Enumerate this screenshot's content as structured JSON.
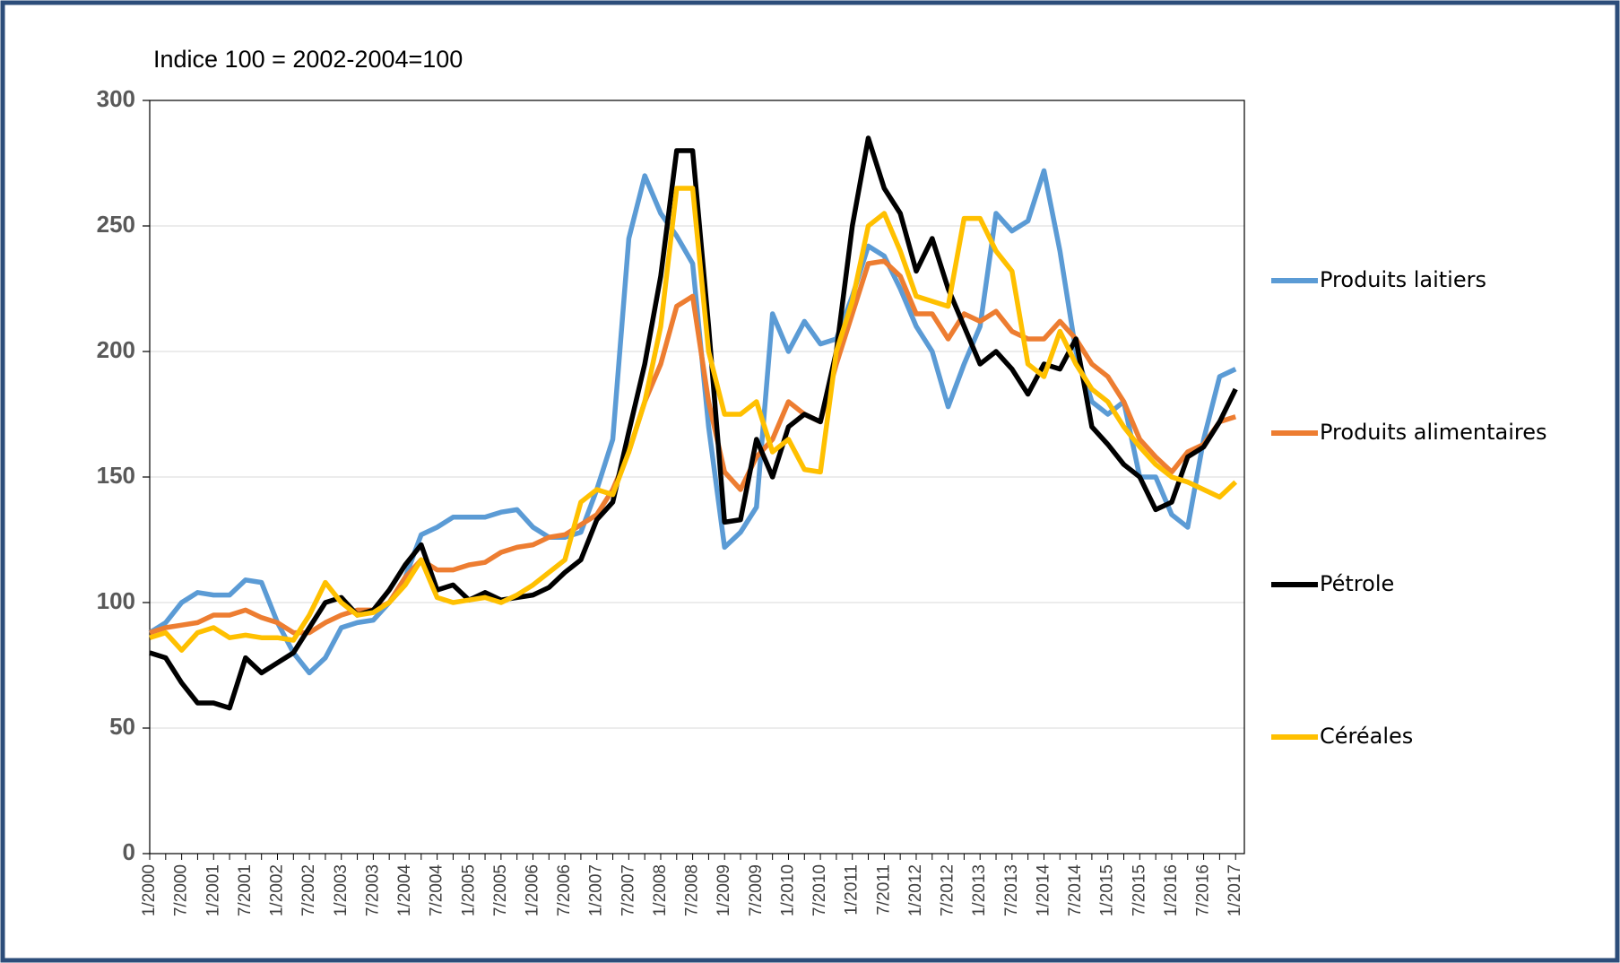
{
  "chart_data": {
    "type": "line",
    "title": "Indice 100 = 2002-2004=100",
    "categories": [
      "1/2000",
      null,
      "7/2000",
      null,
      "1/2001",
      null,
      "7/2001",
      null,
      "1/2002",
      null,
      "7/2002",
      null,
      "1/2003",
      null,
      "7/2003",
      null,
      "1/2004",
      null,
      "7/2004",
      null,
      "1/2005",
      null,
      "7/2005",
      null,
      "1/2006",
      null,
      "7/2006",
      null,
      "1/2007",
      null,
      "7/2007",
      null,
      "1/2008",
      null,
      "7/2008",
      null,
      "1/2009",
      null,
      "7/2009",
      null,
      "1/2010",
      null,
      "7/2010",
      null,
      "1/2011",
      null,
      "7/2011",
      null,
      "1/2012",
      null,
      "7/2012",
      null,
      "1/2013",
      null,
      "7/2013",
      null,
      "1/2014",
      null,
      "7/2014",
      null,
      "1/2015",
      null,
      "7/2015",
      null,
      "1/2016",
      null,
      "7/2016",
      null,
      "1/2017"
    ],
    "series": [
      {
        "name": "Produits laitiers",
        "color": "#5b9bd5",
        "values": [
          88,
          92,
          100,
          104,
          103,
          103,
          109,
          108,
          92,
          80,
          72,
          78,
          90,
          92,
          93,
          100,
          110,
          127,
          130,
          134,
          134,
          134,
          136,
          137,
          130,
          126,
          126,
          128,
          145,
          165,
          245,
          270,
          255,
          246,
          235,
          170,
          122,
          128,
          138,
          215,
          200,
          212,
          203,
          205,
          222,
          242,
          238,
          225,
          210,
          200,
          178,
          195,
          210,
          255,
          248,
          252,
          272,
          240,
          200,
          180,
          175,
          180,
          150,
          150,
          135,
          130,
          165,
          190,
          193
        ]
      },
      {
        "name": "Produits alimentaires",
        "color": "#ed7d31",
        "values": [
          88,
          90,
          91,
          92,
          95,
          95,
          97,
          94,
          92,
          88,
          88,
          92,
          95,
          97,
          97,
          100,
          110,
          117,
          113,
          113,
          115,
          116,
          120,
          122,
          123,
          126,
          127,
          131,
          135,
          145,
          160,
          180,
          195,
          218,
          222,
          180,
          152,
          145,
          158,
          165,
          180,
          175,
          172,
          195,
          215,
          235,
          236,
          230,
          215,
          215,
          205,
          215,
          212,
          216,
          208,
          205,
          205,
          212,
          205,
          195,
          190,
          180,
          165,
          158,
          152,
          160,
          163,
          172,
          174
        ]
      },
      {
        "name": "Pétrole",
        "color": "#000000",
        "values": [
          80,
          78,
          68,
          60,
          60,
          58,
          78,
          72,
          76,
          80,
          90,
          100,
          102,
          95,
          97,
          105,
          115,
          123,
          105,
          107,
          101,
          104,
          101,
          102,
          103,
          106,
          112,
          117,
          133,
          140,
          168,
          195,
          230,
          280,
          280,
          210,
          132,
          133,
          165,
          150,
          170,
          175,
          172,
          200,
          250,
          285,
          265,
          255,
          232,
          245,
          225,
          210,
          195,
          200,
          193,
          183,
          195,
          193,
          205,
          170,
          163,
          155,
          150,
          137,
          140,
          158,
          162,
          172,
          185
        ]
      },
      {
        "name": "Céréales",
        "color": "#ffc000",
        "values": [
          86,
          88,
          81,
          88,
          90,
          86,
          87,
          86,
          86,
          85,
          95,
          108,
          100,
          95,
          96,
          100,
          107,
          117,
          102,
          100,
          101,
          102,
          100,
          103,
          107,
          112,
          117,
          140,
          145,
          143,
          160,
          180,
          210,
          265,
          265,
          200,
          175,
          175,
          180,
          160,
          165,
          153,
          152,
          200,
          220,
          250,
          255,
          240,
          222,
          220,
          218,
          253,
          253,
          240,
          232,
          195,
          190,
          208,
          195,
          185,
          180,
          170,
          162,
          155,
          150,
          148,
          145,
          142,
          148
        ]
      }
    ],
    "ylim": [
      0,
      300
    ],
    "yticks": [
      0,
      50,
      100,
      150,
      200,
      250,
      300
    ],
    "grid": true,
    "legend": "right"
  }
}
